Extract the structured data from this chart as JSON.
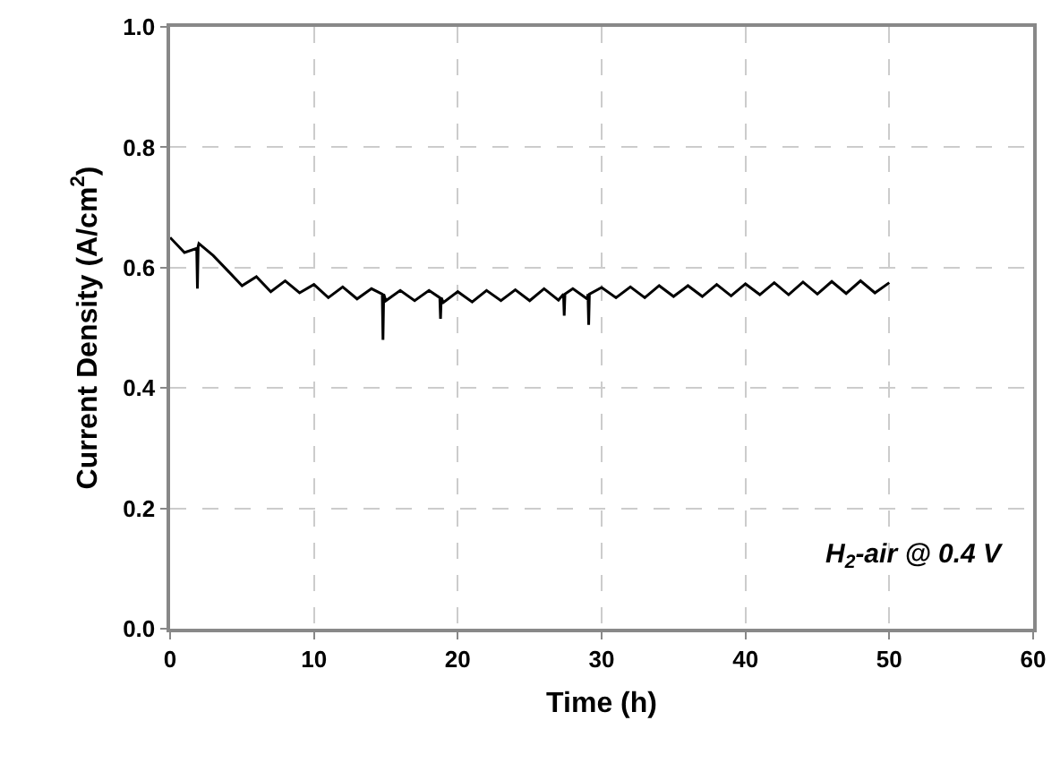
{
  "chart_data": {
    "type": "line",
    "xlabel": "Time (h)",
    "ylabel": "Current Density (A/cm$^{2}$)",
    "annotations": [
      "H$_{2}$-air @ 0.4 V"
    ],
    "xlim": [
      0,
      60
    ],
    "xticks": [
      0,
      10,
      20,
      30,
      40,
      50,
      60
    ],
    "ylim": [
      0,
      1
    ],
    "yticks": [
      {
        "value": 0,
        "label": "0.0"
      },
      {
        "value": 0.2,
        "label": "0.2"
      },
      {
        "value": 0.4,
        "label": "0.4"
      },
      {
        "value": 0.6,
        "label": "0.6"
      },
      {
        "value": 0.8,
        "label": "0.8"
      },
      {
        "value": 1,
        "label": "1.0"
      }
    ],
    "grid": true,
    "marker": "none",
    "line_style": "solid",
    "series": [
      {
        "color": "#000000",
        "x": [
          0,
          1,
          1.85,
          1.9,
          1.95,
          2,
          3,
          4,
          5,
          6,
          7,
          8,
          9,
          10,
          11,
          12,
          13,
          14,
          14.75,
          14.8,
          14.85,
          15,
          16,
          17,
          18,
          18.75,
          18.8,
          18.85,
          19,
          20,
          21,
          22,
          23,
          24,
          25,
          26,
          27,
          27.35,
          27.4,
          27.45,
          28,
          29,
          29.05,
          29.1,
          29.15,
          30,
          31,
          32,
          33,
          34,
          35,
          36,
          37,
          38,
          39,
          40,
          41,
          42,
          43,
          44,
          45,
          46,
          47,
          48,
          49,
          50
        ],
        "values": [
          0.65,
          0.625,
          0.632,
          0.565,
          0.635,
          0.64,
          0.62,
          0.595,
          0.57,
          0.585,
          0.56,
          0.578,
          0.558,
          0.572,
          0.55,
          0.568,
          0.548,
          0.565,
          0.556,
          0.48,
          0.556,
          0.545,
          0.562,
          0.545,
          0.562,
          0.55,
          0.515,
          0.55,
          0.542,
          0.56,
          0.543,
          0.562,
          0.545,
          0.563,
          0.545,
          0.565,
          0.546,
          0.556,
          0.52,
          0.556,
          0.565,
          0.548,
          0.556,
          0.505,
          0.556,
          0.567,
          0.55,
          0.568,
          0.55,
          0.57,
          0.552,
          0.57,
          0.552,
          0.572,
          0.553,
          0.573,
          0.555,
          0.575,
          0.555,
          0.576,
          0.556,
          0.577,
          0.557,
          0.578,
          0.558,
          0.575
        ]
      }
    ]
  }
}
